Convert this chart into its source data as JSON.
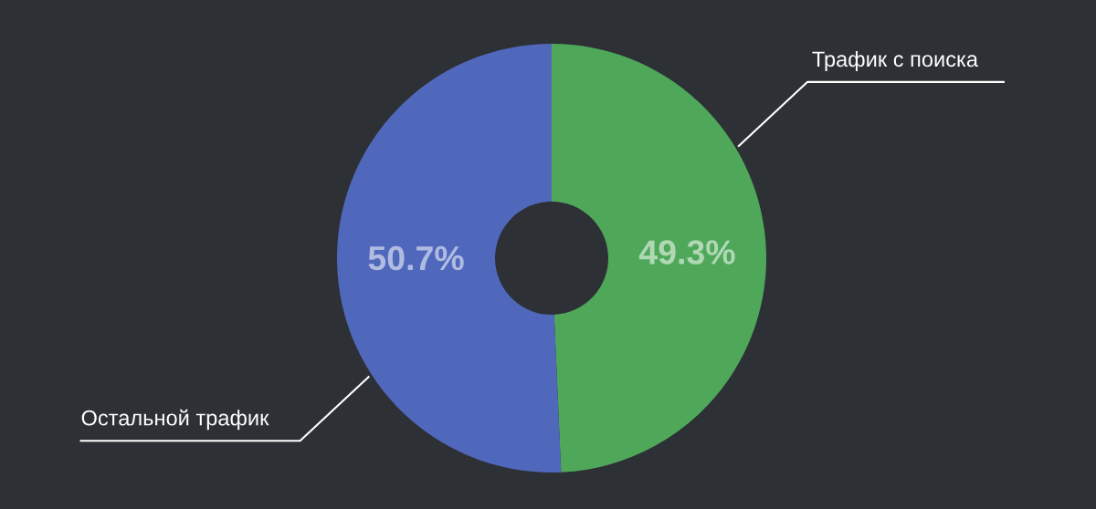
{
  "chart_data": {
    "type": "donut",
    "categories": [
      "Трафик с поиска",
      "Остальной трафик"
    ],
    "values": [
      49.3,
      50.7
    ],
    "colors": [
      "#4fa85a",
      "#5068bc"
    ],
    "value_labels": [
      "49.3%",
      "50.7%"
    ]
  }
}
